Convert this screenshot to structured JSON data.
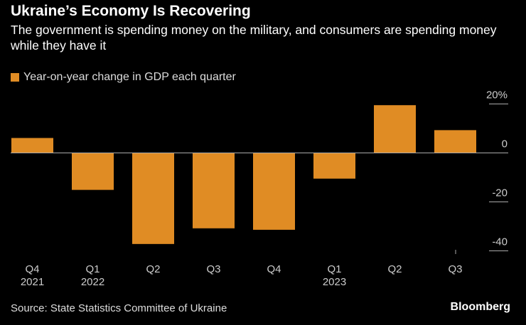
{
  "header": {
    "title": "Ukraine’s Economy Is Recovering",
    "subtitle": "The government is spending money on the military, and consumers are spending money while they have it"
  },
  "footer": {
    "source": "Source: State Statistics Committee of Ukraine",
    "logo": "Bloomberg"
  },
  "chart_data": {
    "type": "bar",
    "categories": [
      "Q4 2021",
      "Q1 2022",
      "Q2",
      "Q3",
      "Q4",
      "Q1 2023",
      "Q2",
      "Q3"
    ],
    "category_labels": [
      [
        "Q4",
        "2021"
      ],
      [
        "Q1",
        "2022"
      ],
      [
        "Q2",
        ""
      ],
      [
        "Q3",
        ""
      ],
      [
        "Q4",
        ""
      ],
      [
        "Q1",
        "2023"
      ],
      [
        "Q2",
        ""
      ],
      [
        "Q3",
        ""
      ]
    ],
    "series": [
      {
        "name": "Year-on-year change in GDP each quarter",
        "values": [
          6.1,
          -15.1,
          -37.2,
          -30.8,
          -31.4,
          -10.5,
          19.5,
          9.3
        ],
        "color": "#e08c24"
      }
    ],
    "yticks": [
      {
        "value": 20,
        "label": "20%"
      },
      {
        "value": 0,
        "label": "0"
      },
      {
        "value": -20,
        "label": "-20"
      },
      {
        "value": -40,
        "label": "-40"
      }
    ],
    "ylim": [
      -40,
      20
    ],
    "yaxis_position": "right",
    "legend_position": "top-left",
    "grid": false
  }
}
